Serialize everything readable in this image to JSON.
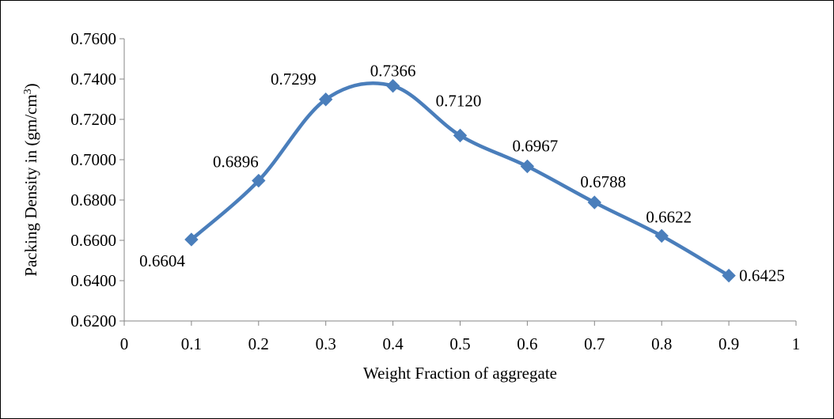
{
  "chart_data": {
    "type": "line",
    "smoothed": true,
    "title": "",
    "xlabel": "Weight Fraction of aggregate",
    "ylabel": "Packing Density in (gm/cm³)",
    "ylabel_parts": {
      "before": "Packing Density in (gm/cm",
      "sup": "3",
      "after": ")"
    },
    "xlim": [
      0,
      1
    ],
    "ylim": [
      0.62,
      0.76
    ],
    "x_ticks": [
      "0",
      "0.1",
      "0.2",
      "0.3",
      "0.4",
      "0.5",
      "0.6",
      "0.7",
      "0.8",
      "0.9",
      "1"
    ],
    "y_ticks": [
      "0.6200",
      "0.6400",
      "0.6600",
      "0.6800",
      "0.7000",
      "0.7200",
      "0.7400",
      "0.7600"
    ],
    "grid": false,
    "legend": "none",
    "series": [
      {
        "x": [
          0.1,
          0.2,
          0.3,
          0.4,
          0.5,
          0.6,
          0.7,
          0.8,
          0.9
        ],
        "values": [
          0.6604,
          0.6896,
          0.7299,
          0.7366,
          0.712,
          0.6967,
          0.6788,
          0.6622,
          0.6425
        ],
        "labels": [
          "0.6604",
          "0.6896",
          "0.7299",
          "0.7366",
          "0.7120",
          "0.6967",
          "0.6788",
          "0.6622",
          "0.6425"
        ],
        "color": "#4a7ebb",
        "marker": "diamond"
      }
    ]
  }
}
